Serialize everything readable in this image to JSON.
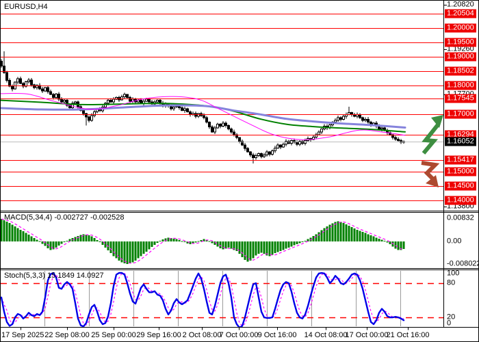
{
  "window": {
    "title": "EURUSD,H4"
  },
  "panels": {
    "macd_label": "MACD(5,34,4) -0.002727 -0.002528",
    "stoch_label": "Stoch(5,3,3) 15.1849 14.0927"
  },
  "colors": {
    "level_red": "#ff0000",
    "badge_red": "#ee0000",
    "badge_black": "#000000",
    "current_gray": "#bdbdbd",
    "candle_up": "#ffffff",
    "candle_down": "#000000",
    "candle_outline": "#000000",
    "macd_green": "#008000",
    "magenta": "#ff00ff",
    "stoch_blue": "#0000e8",
    "grid_gray": "#9a9a9a",
    "up_arrow_green": "#3e8e41",
    "down_arrow_red": "#ad4a30",
    "ma_fast": "#ff00ff",
    "ma_mid": "#008000",
    "ma_slow": "#8583dc"
  },
  "annotations": {
    "up_arrow": {
      "symbol": "zigzag-up-arrow",
      "meaning": "bullish-scenario"
    },
    "down_arrow": {
      "symbol": "zigzag-down-arrow",
      "meaning": "bearish-scenario"
    }
  },
  "chart_data": [
    {
      "type": "candlestick",
      "title": "EURUSD,H4",
      "ylim": [
        1.1375,
        1.209
      ],
      "x_tick_labels": [
        "17 Sep 2025",
        "22 Sep 08:00",
        "25 Sep 00:00",
        "29 Sep 16:00",
        "2 Oct 08:00",
        "7 Oct 00:00",
        "9 Oct 16:00",
        "14 Oct 08:00",
        "17 Oct 00:00",
        "21 Oct 16:00"
      ],
      "axis_plain_ticks": [
        1.2082,
        1.1926,
        1.177,
        1.138
      ],
      "price_levels_red": [
        1.20504,
        1.2,
        1.195,
        1.19,
        1.18502,
        1.18,
        1.17545,
        1.17,
        1.16294,
        1.15417,
        1.15,
        1.145,
        1.14
      ],
      "current_price": 1.16052,
      "first_open": 1.1885,
      "closes": [
        1.1868,
        1.1846,
        1.1818,
        1.1798,
        1.1788,
        1.1812,
        1.1824,
        1.1808,
        1.1798,
        1.1814,
        1.182,
        1.1803,
        1.1793,
        1.1801,
        1.1789,
        1.1781,
        1.1793,
        1.1779,
        1.1769,
        1.1759,
        1.1771,
        1.1753,
        1.1743,
        1.1749,
        1.1731,
        1.1723,
        1.1739,
        1.1743,
        1.1727,
        1.1713,
        1.1703,
        1.1691,
        1.1679,
        1.1696,
        1.1709,
        1.1719,
        1.1713,
        1.1726,
        1.1739,
        1.1749,
        1.1743,
        1.1753,
        1.1759,
        1.1751,
        1.1761,
        1.1769,
        1.1759,
        1.1746,
        1.1753,
        1.1743,
        1.1749,
        1.1739,
        1.1746,
        1.1753,
        1.1743,
        1.1736,
        1.1743,
        1.1749,
        1.1739,
        1.1729,
        1.1736,
        1.1729,
        1.1719,
        1.1726,
        1.1733,
        1.1723,
        1.1713,
        1.1719,
        1.1709,
        1.1699,
        1.1703,
        1.1693,
        1.1703,
        1.1696,
        1.1689,
        1.1673,
        1.1656,
        1.1639,
        1.1653,
        1.1666,
        1.1659,
        1.1669,
        1.1661,
        1.1649,
        1.1639,
        1.1629,
        1.1619,
        1.1606,
        1.1593,
        1.1581,
        1.1569,
        1.1559,
        1.1549,
        1.1556,
        1.1563,
        1.1553,
        1.1559,
        1.1569,
        1.1561,
        1.1573,
        1.1583,
        1.1593,
        1.1586,
        1.1596,
        1.1606,
        1.1599,
        1.1609,
        1.1603,
        1.1596,
        1.1606,
        1.1599,
        1.1609,
        1.1616,
        1.1613,
        1.1621,
        1.1629,
        1.1639,
        1.1649,
        1.1659,
        1.1653,
        1.1663,
        1.1673,
        1.1679,
        1.1689,
        1.1683,
        1.1693,
        1.1699,
        1.1706,
        1.1699,
        1.1693,
        1.1699,
        1.1689,
        1.1679,
        1.1683,
        1.1673,
        1.1663,
        1.1669,
        1.1659,
        1.1649,
        1.1653,
        1.1643,
        1.1636,
        1.1629,
        1.1619,
        1.1613,
        1.1609,
        1.1603,
        1.16052
      ],
      "wick_overrides": {
        "1": {
          "high": 1.192
        },
        "31": {
          "low": 1.1661
        },
        "92": {
          "low": 1.1529
        },
        "127": {
          "high": 1.1727
        }
      },
      "moving_averages": [
        {
          "name": "ma-fast-magenta",
          "width": 1,
          "points": [
            [
              0,
              1.1772
            ],
            [
              40,
              1.1771
            ],
            [
              80,
              1.1745
            ],
            [
              130,
              1.1718
            ],
            [
              170,
              1.173
            ],
            [
              210,
              1.1754
            ],
            [
              250,
              1.1762
            ],
            [
              290,
              1.1752
            ],
            [
              320,
              1.1719
            ],
            [
              360,
              1.1672
            ],
            [
              400,
              1.1629
            ],
            [
              440,
              1.1612
            ],
            [
              480,
              1.1621
            ],
            [
              525,
              1.1645
            ],
            [
              560,
              1.1638
            ],
            [
              592,
              1.1627
            ]
          ]
        },
        {
          "name": "ma-mid-green",
          "width": 2,
          "points": [
            [
              0,
              1.1749
            ],
            [
              60,
              1.1742
            ],
            [
              120,
              1.1734
            ],
            [
              180,
              1.1736
            ],
            [
              240,
              1.1738
            ],
            [
              300,
              1.173
            ],
            [
              340,
              1.1712
            ],
            [
              380,
              1.1684
            ],
            [
              420,
              1.1665
            ],
            [
              460,
              1.1657
            ],
            [
              500,
              1.1652
            ],
            [
              540,
              1.1648
            ],
            [
              592,
              1.1639
            ]
          ]
        },
        {
          "name": "ma-slow-purple",
          "width": 3,
          "points": [
            [
              0,
              1.1722
            ],
            [
              60,
              1.1717
            ],
            [
              120,
              1.1717
            ],
            [
              180,
              1.1724
            ],
            [
              240,
              1.1731
            ],
            [
              300,
              1.1729
            ],
            [
              340,
              1.1714
            ],
            [
              380,
              1.17
            ],
            [
              420,
              1.1684
            ],
            [
              460,
              1.1675
            ],
            [
              500,
              1.1668
            ],
            [
              540,
              1.1663
            ],
            [
              592,
              1.1654
            ]
          ]
        }
      ]
    },
    {
      "type": "bar",
      "name": "MACD(5,34,4)",
      "current_values": [
        -0.002727,
        -0.002528
      ],
      "scale_labels": [
        "0.00832",
        "0.00",
        "-0.008022"
      ],
      "signal_period": 4,
      "values": [
        0.008,
        0.0076,
        0.0071,
        0.0066,
        0.006,
        0.0054,
        0.0048,
        0.0042,
        0.0036,
        0.003,
        0.0024,
        0.0018,
        0.0012,
        0.0006,
        0.0001,
        -0.0008,
        -0.0016,
        -0.0024,
        -0.003,
        -0.0028,
        -0.0022,
        -0.0015,
        -0.0008,
        -0.0002,
        0.0003,
        0.0008,
        0.0012,
        0.0016,
        0.002,
        0.0023,
        0.0026,
        0.0025,
        0.0022,
        0.0018,
        0.0012,
        0.0005,
        -0.0003,
        -0.0012,
        -0.0022,
        -0.0032,
        -0.0042,
        -0.0052,
        -0.006,
        -0.0068,
        -0.0074,
        -0.0078,
        -0.008,
        -0.0078,
        -0.0074,
        -0.0068,
        -0.006,
        -0.0052,
        -0.0044,
        -0.0036,
        -0.0028,
        -0.002,
        -0.0012,
        -0.0005,
        0.0002,
        0.0007,
        0.0011,
        0.0013,
        0.0012,
        0.001,
        0.0008,
        0.0005,
        0.0001,
        -0.0003,
        -0.0007,
        -0.001,
        -0.0008,
        -0.0004,
        0.0001,
        0.0005,
        0.0008,
        0.0006,
        0.0001,
        -0.0006,
        -0.0012,
        -0.0018,
        -0.0024,
        -0.0028,
        -0.0026,
        -0.0022,
        -0.0026,
        -0.003,
        -0.0034,
        -0.0044,
        -0.0056,
        -0.0066,
        -0.0072,
        -0.0068,
        -0.006,
        -0.005,
        -0.0044,
        -0.004,
        -0.0044,
        -0.005,
        -0.0052,
        -0.0048,
        -0.0042,
        -0.0038,
        -0.0034,
        -0.003,
        -0.0026,
        -0.0022,
        -0.0018,
        -0.0014,
        -0.001,
        -0.0006,
        -0.0002,
        0.0003,
        0.0008,
        0.0014,
        0.002,
        0.0026,
        0.0033,
        0.004,
        0.0047,
        0.0054,
        0.006,
        0.0065,
        0.0069,
        0.0072,
        0.007,
        0.0066,
        0.0061,
        0.0056,
        0.0051,
        0.0046,
        0.0042,
        0.0038,
        0.0034,
        0.003,
        0.0026,
        0.0022,
        0.0018,
        0.0014,
        0.001,
        0.0006,
        0.0002,
        -0.0004,
        -0.001,
        -0.0018,
        -0.0026,
        -0.0031,
        -0.003,
        -0.002727
      ]
    },
    {
      "type": "line",
      "name": "Stoch(5,3,3)",
      "current_values": [
        15.1849,
        14.0927
      ],
      "scale_labels": [
        "100",
        "80",
        "20",
        "0"
      ],
      "overbought": 80,
      "oversold": 20,
      "d_period": 3,
      "k_values": [
        55,
        30,
        12,
        5,
        8,
        20,
        26,
        24,
        18,
        22,
        28,
        24,
        22,
        26,
        24,
        30,
        55,
        85,
        96,
        98,
        90,
        72,
        70,
        78,
        82,
        78,
        70,
        45,
        18,
        6,
        4,
        10,
        25,
        38,
        42,
        30,
        15,
        8,
        10,
        22,
        45,
        75,
        95,
        98,
        98,
        95,
        80,
        62,
        48,
        44,
        58,
        72,
        78,
        70,
        64,
        64,
        66,
        60,
        58,
        50,
        35,
        25,
        32,
        45,
        52,
        46,
        43,
        46,
        50,
        62,
        75,
        88,
        97,
        88,
        70,
        48,
        28,
        25,
        40,
        60,
        80,
        92,
        95,
        80,
        55,
        20,
        8,
        2,
        5,
        20,
        40,
        60,
        78,
        80,
        55,
        30,
        20,
        19,
        19,
        20,
        35,
        52,
        68,
        78,
        82,
        80,
        65,
        45,
        28,
        20,
        18,
        25,
        40,
        58,
        75,
        90,
        97,
        98,
        97,
        90,
        80,
        85,
        93,
        88,
        80,
        78,
        82,
        88,
        95,
        97,
        95,
        85,
        70,
        50,
        30,
        12,
        8,
        15,
        28,
        35,
        30,
        22,
        20,
        20,
        21,
        20,
        18,
        15
      ]
    }
  ]
}
